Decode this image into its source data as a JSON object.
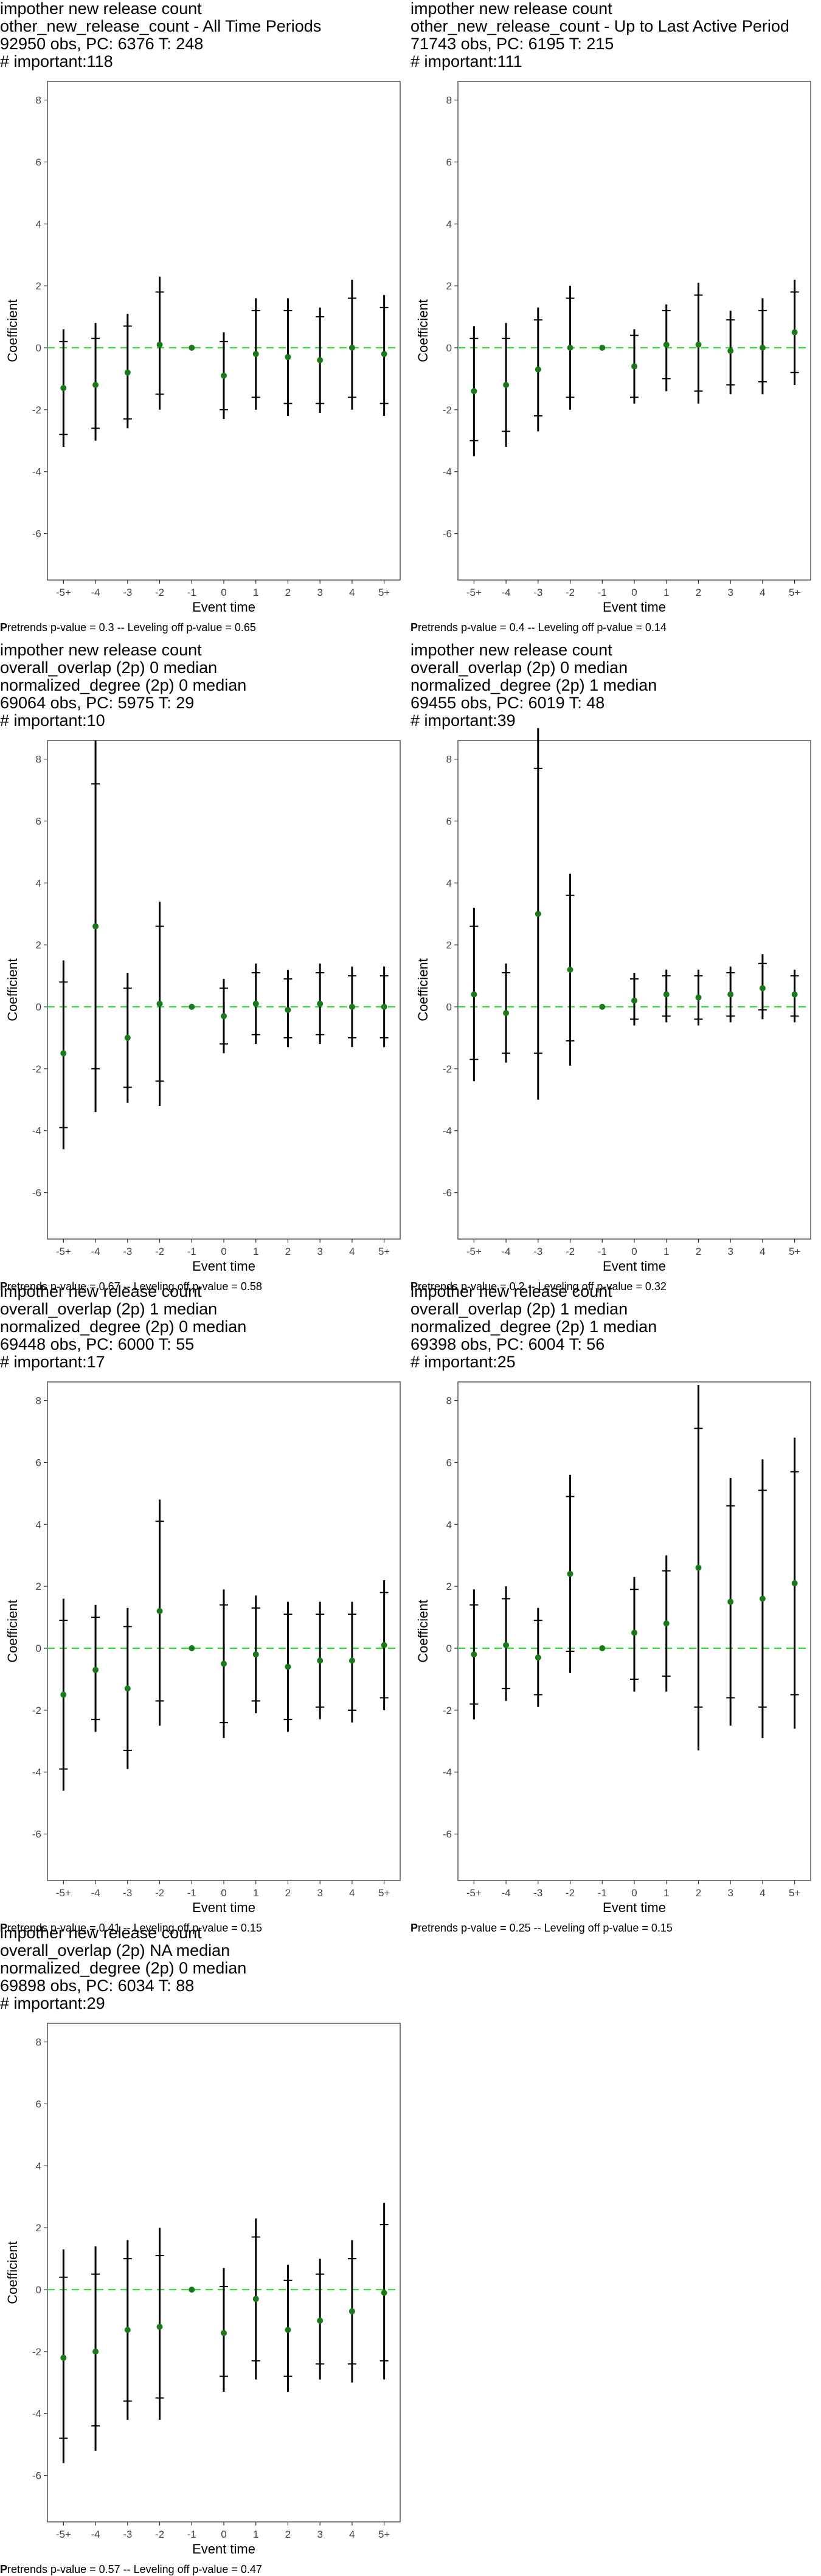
{
  "colors": {
    "point": "#1a7a1a",
    "zero_line": "#33dd33",
    "bar": "#000000",
    "frame": "#555555"
  },
  "axis": {
    "xlabel": "Event time",
    "ylabel": "Coefficient"
  },
  "chart_data": [
    {
      "type": "scatter",
      "header": [
        " impother new release count",
        "other_new_release_count - All Time Periods",
        "92950 obs, PC: 6376 T: 248",
        "# important:118"
      ],
      "footnote": {
        "bold": "P",
        "rest": "retrends p-value = 0.3 -- Leveling off p-value = 0.65"
      },
      "x": [
        "-5+",
        "-4",
        "-3",
        "-2",
        "-1",
        "0",
        "1",
        "2",
        "3",
        "4",
        "5+"
      ],
      "y": [
        -1.3,
        -1.2,
        -0.8,
        0.1,
        0.0,
        -0.9,
        -0.2,
        -0.3,
        -0.4,
        0.0,
        -0.2
      ],
      "ci90": [
        [
          -2.8,
          0.2
        ],
        [
          -2.6,
          0.3
        ],
        [
          -2.3,
          0.7
        ],
        [
          -1.5,
          1.8
        ],
        [
          0.0,
          0.0
        ],
        [
          -2.0,
          0.2
        ],
        [
          -1.6,
          1.2
        ],
        [
          -1.8,
          1.2
        ],
        [
          -1.8,
          1.0
        ],
        [
          -1.6,
          1.6
        ],
        [
          -1.8,
          1.3
        ]
      ],
      "ci95": [
        [
          -3.2,
          0.6
        ],
        [
          -3.0,
          0.8
        ],
        [
          -2.6,
          1.1
        ],
        [
          -2.0,
          2.3
        ],
        [
          0.0,
          0.0
        ],
        [
          -2.3,
          0.5
        ],
        [
          -2.0,
          1.6
        ],
        [
          -2.2,
          1.6
        ],
        [
          -2.1,
          1.3
        ],
        [
          -2.0,
          2.2
        ],
        [
          -2.2,
          1.7
        ]
      ],
      "ylim": [
        -7.5,
        8.6
      ],
      "yticks": [
        -6,
        -4,
        -2,
        0,
        2,
        4,
        6,
        8
      ],
      "ytick_labels": [
        "-6",
        "-4",
        "-2",
        "0",
        "2",
        "4",
        "6",
        "8"
      ],
      "grid": false
    },
    {
      "type": "scatter",
      "header": [
        " impother new release count",
        "other_new_release_count - Up to Last Active Period",
        "71743 obs, PC: 6195 T: 215",
        "# important:111"
      ],
      "footnote": {
        "bold": "P",
        "rest": "retrends p-value = 0.4 -- Leveling off p-value = 0.14"
      },
      "x": [
        "-5+",
        "-4",
        "-3",
        "-2",
        "-1",
        "0",
        "1",
        "2",
        "3",
        "4",
        "5+"
      ],
      "y": [
        -1.4,
        -1.2,
        -0.7,
        0.0,
        0.0,
        -0.6,
        0.1,
        0.1,
        -0.1,
        0.0,
        0.5
      ],
      "ci90": [
        [
          -3.0,
          0.3
        ],
        [
          -2.7,
          0.3
        ],
        [
          -2.2,
          0.9
        ],
        [
          -1.6,
          1.6
        ],
        [
          0.0,
          0.0
        ],
        [
          -1.6,
          0.4
        ],
        [
          -1.0,
          1.2
        ],
        [
          -1.4,
          1.7
        ],
        [
          -1.2,
          0.9
        ],
        [
          -1.1,
          1.2
        ],
        [
          -0.8,
          1.8
        ]
      ],
      "ci95": [
        [
          -3.5,
          0.7
        ],
        [
          -3.2,
          0.8
        ],
        [
          -2.7,
          1.3
        ],
        [
          -2.0,
          2.0
        ],
        [
          0.0,
          0.0
        ],
        [
          -1.8,
          0.6
        ],
        [
          -1.4,
          1.4
        ],
        [
          -1.8,
          2.1
        ],
        [
          -1.5,
          1.2
        ],
        [
          -1.5,
          1.6
        ],
        [
          -1.2,
          2.2
        ]
      ],
      "ylim": [
        -7.5,
        8.6
      ],
      "yticks": [
        -6,
        -4,
        -2,
        0,
        2,
        4,
        6,
        8
      ],
      "ytick_labels": [
        "-6",
        "-4",
        "-2",
        "0",
        "2",
        "4",
        "6",
        "8"
      ],
      "grid": false
    },
    {
      "type": "scatter",
      "header": [
        " impother new release count",
        "overall_overlap (2p) 0 median",
        "normalized_degree (2p) 0 median",
        "69064 obs, PC: 5975 T: 29",
        "# important:10"
      ],
      "footnote": {
        "bold": "P",
        "rest": "retrends p-value = 0.67 -- Leveling off p-value = 0.58"
      },
      "x": [
        "-5+",
        "-4",
        "-3",
        "-2",
        "-1",
        "0",
        "1",
        "2",
        "3",
        "4",
        "5+"
      ],
      "y": [
        -1.5,
        2.6,
        -1.0,
        0.1,
        0.0,
        -0.3,
        0.1,
        -0.1,
        0.1,
        0.0,
        0.0
      ],
      "ci90": [
        [
          -3.9,
          0.8
        ],
        [
          -2.0,
          7.2
        ],
        [
          -2.6,
          0.6
        ],
        [
          -2.4,
          2.6
        ],
        [
          0.0,
          0.0
        ],
        [
          -1.2,
          0.6
        ],
        [
          -0.9,
          1.1
        ],
        [
          -1.0,
          0.9
        ],
        [
          -0.9,
          1.1
        ],
        [
          -1.0,
          1.0
        ],
        [
          -1.0,
          1.0
        ]
      ],
      "ci95": [
        [
          -4.6,
          1.5
        ],
        [
          -3.4,
          8.6
        ],
        [
          -3.1,
          1.1
        ],
        [
          -3.2,
          3.4
        ],
        [
          0.0,
          0.0
        ],
        [
          -1.5,
          0.9
        ],
        [
          -1.2,
          1.4
        ],
        [
          -1.3,
          1.2
        ],
        [
          -1.2,
          1.4
        ],
        [
          -1.3,
          1.3
        ],
        [
          -1.3,
          1.3
        ]
      ],
      "ylim": [
        -7.5,
        8.6
      ],
      "yticks": [
        -6,
        -4,
        -2,
        0,
        2,
        4,
        6,
        8
      ],
      "ytick_labels": [
        "-6",
        "-4",
        "-2",
        "0",
        "2",
        "4",
        "6",
        "8"
      ],
      "grid": false
    },
    {
      "type": "scatter",
      "header": [
        " impother new release count",
        "overall_overlap (2p) 0 median",
        "normalized_degree (2p) 1 median",
        "69455 obs, PC: 6019 T: 48",
        "# important:39"
      ],
      "footnote": {
        "bold": "P",
        "rest": "retrends p-value = 0.2 -- Leveling off p-value = 0.32"
      },
      "x": [
        "-5+",
        "-4",
        "-3",
        "-2",
        "-1",
        "0",
        "1",
        "2",
        "3",
        "4",
        "5+"
      ],
      "y": [
        0.4,
        -0.2,
        3.0,
        1.2,
        0.0,
        0.2,
        0.4,
        0.3,
        0.4,
        0.6,
        0.4
      ],
      "ci90": [
        [
          -1.7,
          2.6
        ],
        [
          -1.5,
          1.1
        ],
        [
          -1.5,
          7.7
        ],
        [
          -1.1,
          3.6
        ],
        [
          0.0,
          0.0
        ],
        [
          -0.4,
          0.9
        ],
        [
          -0.3,
          1.0
        ],
        [
          -0.4,
          1.0
        ],
        [
          -0.3,
          1.1
        ],
        [
          -0.1,
          1.4
        ],
        [
          -0.3,
          1.0
        ]
      ],
      "ci95": [
        [
          -2.4,
          3.2
        ],
        [
          -1.8,
          1.4
        ],
        [
          -3.0,
          9.0
        ],
        [
          -1.9,
          4.3
        ],
        [
          0.0,
          0.0
        ],
        [
          -0.6,
          1.1
        ],
        [
          -0.5,
          1.2
        ],
        [
          -0.6,
          1.2
        ],
        [
          -0.5,
          1.3
        ],
        [
          -0.4,
          1.7
        ],
        [
          -0.5,
          1.2
        ]
      ],
      "ylim": [
        -7.5,
        8.6
      ],
      "yticks": [
        -6,
        -4,
        -2,
        0,
        2,
        4,
        6,
        8
      ],
      "ytick_labels": [
        "-6",
        "-4",
        "-2",
        "0",
        "2",
        "4",
        "6",
        "8"
      ],
      "grid": false
    },
    {
      "type": "scatter",
      "header": [
        " impother new release count",
        "overall_overlap (2p) 1 median",
        "normalized_degree (2p) 0 median",
        "69448 obs, PC: 6000 T: 55",
        "# important:17"
      ],
      "footnote": {
        "bold": "P",
        "rest": "retrends p-value = 0.41 -- Leveling off p-value = 0.15"
      },
      "x": [
        "-5+",
        "-4",
        "-3",
        "-2",
        "-1",
        "0",
        "1",
        "2",
        "3",
        "4",
        "5+"
      ],
      "y": [
        -1.5,
        -0.7,
        -1.3,
        1.2,
        0.0,
        -0.5,
        -0.2,
        -0.6,
        -0.4,
        -0.4,
        0.1
      ],
      "ci90": [
        [
          -3.9,
          0.9
        ],
        [
          -2.3,
          1.0
        ],
        [
          -3.3,
          0.7
        ],
        [
          -1.7,
          4.1
        ],
        [
          0.0,
          0.0
        ],
        [
          -2.4,
          1.4
        ],
        [
          -1.7,
          1.3
        ],
        [
          -2.3,
          1.1
        ],
        [
          -1.9,
          1.1
        ],
        [
          -2.0,
          1.1
        ],
        [
          -1.6,
          1.8
        ]
      ],
      "ci95": [
        [
          -4.6,
          1.6
        ],
        [
          -2.7,
          1.4
        ],
        [
          -3.9,
          1.3
        ],
        [
          -2.5,
          4.8
        ],
        [
          0.0,
          0.0
        ],
        [
          -2.9,
          1.9
        ],
        [
          -2.1,
          1.7
        ],
        [
          -2.7,
          1.5
        ],
        [
          -2.3,
          1.5
        ],
        [
          -2.4,
          1.5
        ],
        [
          -2.0,
          2.2
        ]
      ],
      "ylim": [
        -7.5,
        8.6
      ],
      "yticks": [
        -6,
        -4,
        -2,
        0,
        2,
        4,
        6,
        8
      ],
      "ytick_labels": [
        "-6",
        "-4",
        "-2",
        "0",
        "2",
        "4",
        "6",
        "8"
      ],
      "grid": false
    },
    {
      "type": "scatter",
      "header": [
        " impother new release count",
        "overall_overlap (2p) 1 median",
        "normalized_degree (2p) 1 median",
        "69398 obs, PC: 6004 T: 56",
        "# important:25"
      ],
      "footnote": {
        "bold": "P",
        "rest": "retrends p-value = 0.25 -- Leveling off p-value = 0.15"
      },
      "x": [
        "-5+",
        "-4",
        "-3",
        "-2",
        "-1",
        "0",
        "1",
        "2",
        "3",
        "4",
        "5+"
      ],
      "y": [
        -0.2,
        0.1,
        -0.3,
        2.4,
        0.0,
        0.5,
        0.8,
        2.6,
        1.5,
        1.6,
        2.1
      ],
      "ci90": [
        [
          -1.8,
          1.4
        ],
        [
          -1.3,
          1.6
        ],
        [
          -1.5,
          0.9
        ],
        [
          -0.1,
          4.9
        ],
        [
          0.0,
          0.0
        ],
        [
          -1.0,
          1.9
        ],
        [
          -0.9,
          2.5
        ],
        [
          -1.9,
          7.1
        ],
        [
          -1.6,
          4.6
        ],
        [
          -1.9,
          5.1
        ],
        [
          -1.5,
          5.7
        ]
      ],
      "ci95": [
        [
          -2.3,
          1.9
        ],
        [
          -1.7,
          2.0
        ],
        [
          -1.9,
          1.3
        ],
        [
          -0.8,
          5.6
        ],
        [
          0.0,
          0.0
        ],
        [
          -1.4,
          2.3
        ],
        [
          -1.4,
          3.0
        ],
        [
          -3.3,
          8.5
        ],
        [
          -2.5,
          5.5
        ],
        [
          -2.9,
          6.1
        ],
        [
          -2.6,
          6.8
        ]
      ],
      "ylim": [
        -7.5,
        8.6
      ],
      "yticks": [
        -6,
        -4,
        -2,
        0,
        2,
        4,
        6,
        8
      ],
      "ytick_labels": [
        "-6",
        "-4",
        "-2",
        "0",
        "2",
        "4",
        "6",
        "8"
      ],
      "grid": false
    },
    {
      "type": "scatter",
      "header": [
        " impother new release count",
        "overall_overlap (2p) NA median",
        "normalized_degree (2p) 0 median",
        "69898 obs, PC: 6034 T: 88",
        "# important:29"
      ],
      "footnote": {
        "bold": "P",
        "rest": "retrends p-value = 0.57 -- Leveling off p-value = 0.47"
      },
      "x": [
        "-5+",
        "-4",
        "-3",
        "-2",
        "-1",
        "0",
        "1",
        "2",
        "3",
        "4",
        "5+"
      ],
      "y": [
        -2.2,
        -2.0,
        -1.3,
        -1.2,
        0.0,
        -1.4,
        -0.3,
        -1.3,
        -1.0,
        -0.7,
        -0.1
      ],
      "ci90": [
        [
          -4.8,
          0.4
        ],
        [
          -4.4,
          0.5
        ],
        [
          -3.6,
          1.0
        ],
        [
          -3.5,
          1.1
        ],
        [
          0.0,
          0.0
        ],
        [
          -2.8,
          0.1
        ],
        [
          -2.3,
          1.7
        ],
        [
          -2.8,
          0.3
        ],
        [
          -2.4,
          0.5
        ],
        [
          -2.4,
          1.0
        ],
        [
          -2.3,
          2.1
        ]
      ],
      "ci95": [
        [
          -5.6,
          1.3
        ],
        [
          -5.2,
          1.4
        ],
        [
          -4.2,
          1.6
        ],
        [
          -4.2,
          2.0
        ],
        [
          0.0,
          0.0
        ],
        [
          -3.3,
          0.7
        ],
        [
          -2.9,
          2.3
        ],
        [
          -3.3,
          0.8
        ],
        [
          -2.9,
          1.0
        ],
        [
          -3.0,
          1.6
        ],
        [
          -2.9,
          2.8
        ]
      ],
      "ylim": [
        -7.5,
        8.6
      ],
      "yticks": [
        -6,
        -4,
        -2,
        0,
        2,
        4,
        6,
        8
      ],
      "ytick_labels": [
        "-6",
        "-4",
        "-2",
        "0",
        "2",
        "4",
        "6",
        "8"
      ],
      "grid": false
    }
  ]
}
